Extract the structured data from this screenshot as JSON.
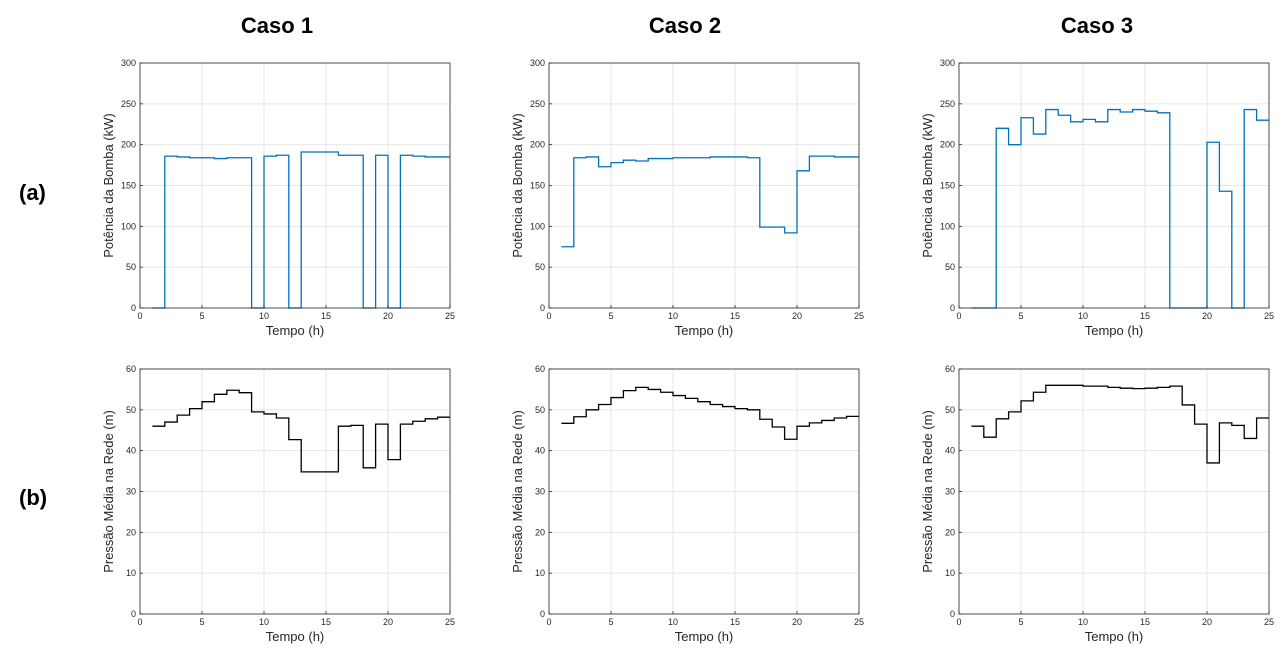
{
  "column_titles": [
    "Caso 1",
    "Caso 2",
    "Caso 3"
  ],
  "row_labels": [
    "(a)",
    "(b)"
  ],
  "colors": {
    "power": "#0072BD",
    "pressure": "#000000"
  },
  "chart_data": [
    {
      "type": "line",
      "row": "(a)",
      "column": "Caso 1",
      "xlabel": "Tempo (h)",
      "ylabel": "Potência da Bomba (kW)",
      "xlim": [
        0,
        25
      ],
      "ylim": [
        0,
        300
      ],
      "xticks": [
        0,
        5,
        10,
        15,
        20,
        25
      ],
      "yticks": [
        0,
        50,
        100,
        150,
        200,
        250,
        300
      ],
      "grid": true,
      "color": "#0072BD",
      "x": [
        1,
        2,
        3,
        4,
        5,
        6,
        7,
        8,
        9,
        10,
        11,
        12,
        13,
        14,
        15,
        16,
        17,
        18,
        19,
        20,
        21,
        22,
        23,
        24
      ],
      "y": [
        0,
        186,
        185,
        184,
        184,
        183,
        184,
        184,
        0,
        186,
        187,
        0,
        191,
        191,
        191,
        187,
        187,
        0,
        187,
        0,
        187,
        186,
        185,
        185
      ]
    },
    {
      "type": "line",
      "row": "(a)",
      "column": "Caso 2",
      "xlabel": "Tempo (h)",
      "ylabel": "Potência da Bomba (kW)",
      "xlim": [
        0,
        25
      ],
      "ylim": [
        0,
        300
      ],
      "xticks": [
        0,
        5,
        10,
        15,
        20,
        25
      ],
      "yticks": [
        0,
        50,
        100,
        150,
        200,
        250,
        300
      ],
      "grid": true,
      "color": "#0072BD",
      "x": [
        1,
        2,
        3,
        4,
        5,
        6,
        7,
        8,
        9,
        10,
        11,
        12,
        13,
        14,
        15,
        16,
        17,
        18,
        19,
        20,
        21,
        22,
        23,
        24
      ],
      "y": [
        75,
        184,
        185,
        173,
        178,
        181,
        180,
        183,
        183,
        184,
        184,
        184,
        185,
        185,
        185,
        184,
        99,
        99,
        92,
        168,
        186,
        186,
        185,
        185
      ]
    },
    {
      "type": "line",
      "row": "(a)",
      "column": "Caso 3",
      "xlabel": "Tempo (h)",
      "ylabel": "Potência da Bomba (kW)",
      "xlim": [
        0,
        25
      ],
      "ylim": [
        0,
        300
      ],
      "xticks": [
        0,
        5,
        10,
        15,
        20,
        25
      ],
      "yticks": [
        0,
        50,
        100,
        150,
        200,
        250,
        300
      ],
      "grid": true,
      "color": "#0072BD",
      "x": [
        1,
        2,
        3,
        4,
        5,
        6,
        7,
        8,
        9,
        10,
        11,
        12,
        13,
        14,
        15,
        16,
        17,
        18,
        19,
        20,
        21,
        22,
        23,
        24
      ],
      "y": [
        0,
        0,
        220,
        200,
        233,
        213,
        243,
        236,
        228,
        231,
        228,
        243,
        240,
        243,
        241,
        239,
        0,
        0,
        0,
        203,
        143,
        0,
        243,
        230
      ]
    },
    {
      "type": "line",
      "row": "(b)",
      "column": "Caso 1",
      "xlabel": "Tempo (h)",
      "ylabel": "Pressão Média na Rede (m)",
      "xlim": [
        0,
        25
      ],
      "ylim": [
        0,
        60
      ],
      "xticks": [
        0,
        5,
        10,
        15,
        20,
        25
      ],
      "yticks": [
        0,
        10,
        20,
        30,
        40,
        50,
        60
      ],
      "grid": true,
      "color": "#000000",
      "x": [
        1,
        2,
        3,
        4,
        5,
        6,
        7,
        8,
        9,
        10,
        11,
        12,
        13,
        14,
        15,
        16,
        17,
        18,
        19,
        20,
        21,
        22,
        23,
        24
      ],
      "y": [
        46,
        47,
        48.7,
        50.3,
        52,
        53.8,
        54.8,
        54.2,
        49.5,
        49,
        48,
        42.7,
        34.8,
        34.8,
        34.8,
        46,
        46.2,
        35.8,
        46.5,
        37.8,
        46.5,
        47.2,
        47.8,
        48.2
      ]
    },
    {
      "type": "line",
      "row": "(b)",
      "column": "Caso 2",
      "xlabel": "Tempo (h)",
      "ylabel": "Pressão Média na Rede (m)",
      "xlim": [
        0,
        25
      ],
      "ylim": [
        0,
        60
      ],
      "xticks": [
        0,
        5,
        10,
        15,
        20,
        25
      ],
      "yticks": [
        0,
        10,
        20,
        30,
        40,
        50,
        60
      ],
      "grid": true,
      "color": "#000000",
      "x": [
        1,
        2,
        3,
        4,
        5,
        6,
        7,
        8,
        9,
        10,
        11,
        12,
        13,
        14,
        15,
        16,
        17,
        18,
        19,
        20,
        21,
        22,
        23,
        24
      ],
      "y": [
        46.7,
        48.3,
        50,
        51.3,
        53,
        54.7,
        55.5,
        55,
        54.3,
        53.5,
        52.8,
        52,
        51.3,
        50.8,
        50.3,
        50,
        47.7,
        45.8,
        42.8,
        46,
        46.8,
        47.4,
        48,
        48.4
      ]
    },
    {
      "type": "line",
      "row": "(b)",
      "column": "Caso 3",
      "xlabel": "Tempo (h)",
      "ylabel": "Pressão Média na Rede (m)",
      "xlim": [
        0,
        25
      ],
      "ylim": [
        0,
        60
      ],
      "xticks": [
        0,
        5,
        10,
        15,
        20,
        25
      ],
      "yticks": [
        0,
        10,
        20,
        30,
        40,
        50,
        60
      ],
      "grid": true,
      "color": "#000000",
      "x": [
        1,
        2,
        3,
        4,
        5,
        6,
        7,
        8,
        9,
        10,
        11,
        12,
        13,
        14,
        15,
        16,
        17,
        18,
        19,
        20,
        21,
        22,
        23,
        24
      ],
      "y": [
        46,
        43.3,
        47.8,
        49.5,
        52.2,
        54.3,
        56,
        56,
        56,
        55.8,
        55.8,
        55.5,
        55.3,
        55.2,
        55.3,
        55.5,
        55.8,
        51.2,
        46.5,
        37,
        46.8,
        46.2,
        43,
        48
      ]
    }
  ]
}
